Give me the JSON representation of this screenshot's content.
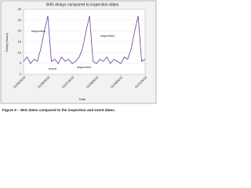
{
  "chart_data": {
    "type": "line",
    "title": "WIG delays compared to inspection dates",
    "x_label": "Date",
    "y_label": "Delay (hours)",
    "caption": "Figure 5 – WIG dates compared to the inspection and event dates.",
    "categories": [
      "01/05/2010",
      null,
      null,
      null,
      null,
      null,
      null,
      "01/06/2010",
      null,
      null,
      null,
      null,
      null,
      null,
      "01/07/2010",
      null,
      null,
      null,
      null,
      null,
      null,
      "01/08/2010",
      null,
      null,
      null,
      null,
      null,
      null,
      "01/09/2010",
      null,
      null,
      null,
      null,
      null,
      null,
      "01/10/2010"
    ],
    "series": [
      {
        "name": "WIG delay",
        "color": "#6a3d9a",
        "values": [
          6,
          8,
          5,
          7,
          6,
          12,
          20,
          27,
          6,
          7,
          5,
          8,
          6,
          7,
          5,
          6,
          8,
          12,
          20,
          27,
          6,
          5,
          7,
          6,
          8,
          5,
          7,
          6,
          5,
          8,
          7,
          12,
          20,
          27,
          6,
          7
        ]
      }
    ],
    "annotations": [
      "inspection",
      "event",
      "inspection",
      "inspection"
    ],
    "ylim": [
      0,
      30
    ],
    "yticks": [
      0,
      5,
      10,
      15,
      20,
      25,
      30
    ],
    "grid": true
  }
}
